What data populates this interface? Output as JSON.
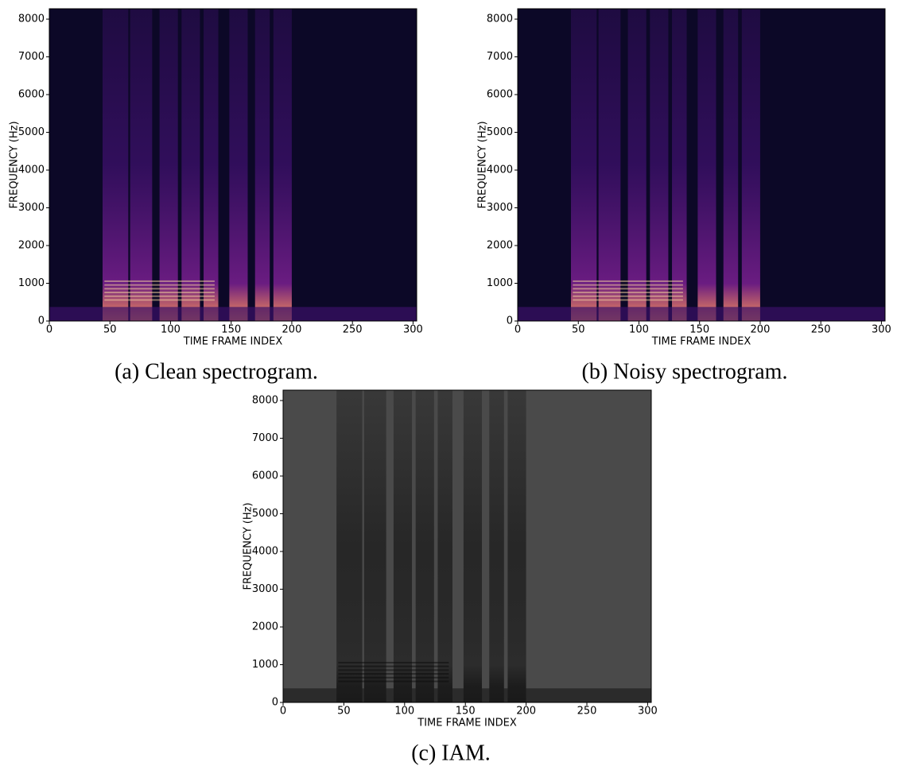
{
  "chart_data": [
    {
      "type": "spectrogram",
      "caption": "(a) Clean spectrogram.",
      "xlabel": "TIME FRAME INDEX",
      "ylabel": "FREQUENCY (Hz)",
      "xlim": [
        0,
        303
      ],
      "ylim": [
        0,
        8275
      ],
      "xticks": [
        0,
        50,
        100,
        150,
        200,
        250,
        300
      ],
      "yticks": [
        0,
        1000,
        2000,
        3000,
        4000,
        5000,
        6000,
        7000,
        8000
      ],
      "colormap": "magma"
    },
    {
      "type": "spectrogram",
      "caption": "(b) Noisy spectrogram.",
      "xlabel": "TIME FRAME INDEX",
      "ylabel": "FREQUENCY (Hz)",
      "xlim": [
        0,
        303
      ],
      "ylim": [
        0,
        8275
      ],
      "xticks": [
        0,
        50,
        100,
        150,
        200,
        250,
        300
      ],
      "yticks": [
        0,
        1000,
        2000,
        3000,
        4000,
        5000,
        6000,
        7000,
        8000
      ],
      "colormap": "magma"
    },
    {
      "type": "spectrogram",
      "caption": "(c) IAM.",
      "xlabel": "TIME FRAME INDEX",
      "ylabel": "FREQUENCY (Hz)",
      "xlim": [
        0,
        303
      ],
      "ylim": [
        0,
        8275
      ],
      "xticks": [
        0,
        50,
        100,
        150,
        200,
        250,
        300
      ],
      "yticks": [
        0,
        1000,
        2000,
        3000,
        4000,
        5000,
        6000,
        7000,
        8000
      ],
      "colormap": "gray"
    }
  ]
}
